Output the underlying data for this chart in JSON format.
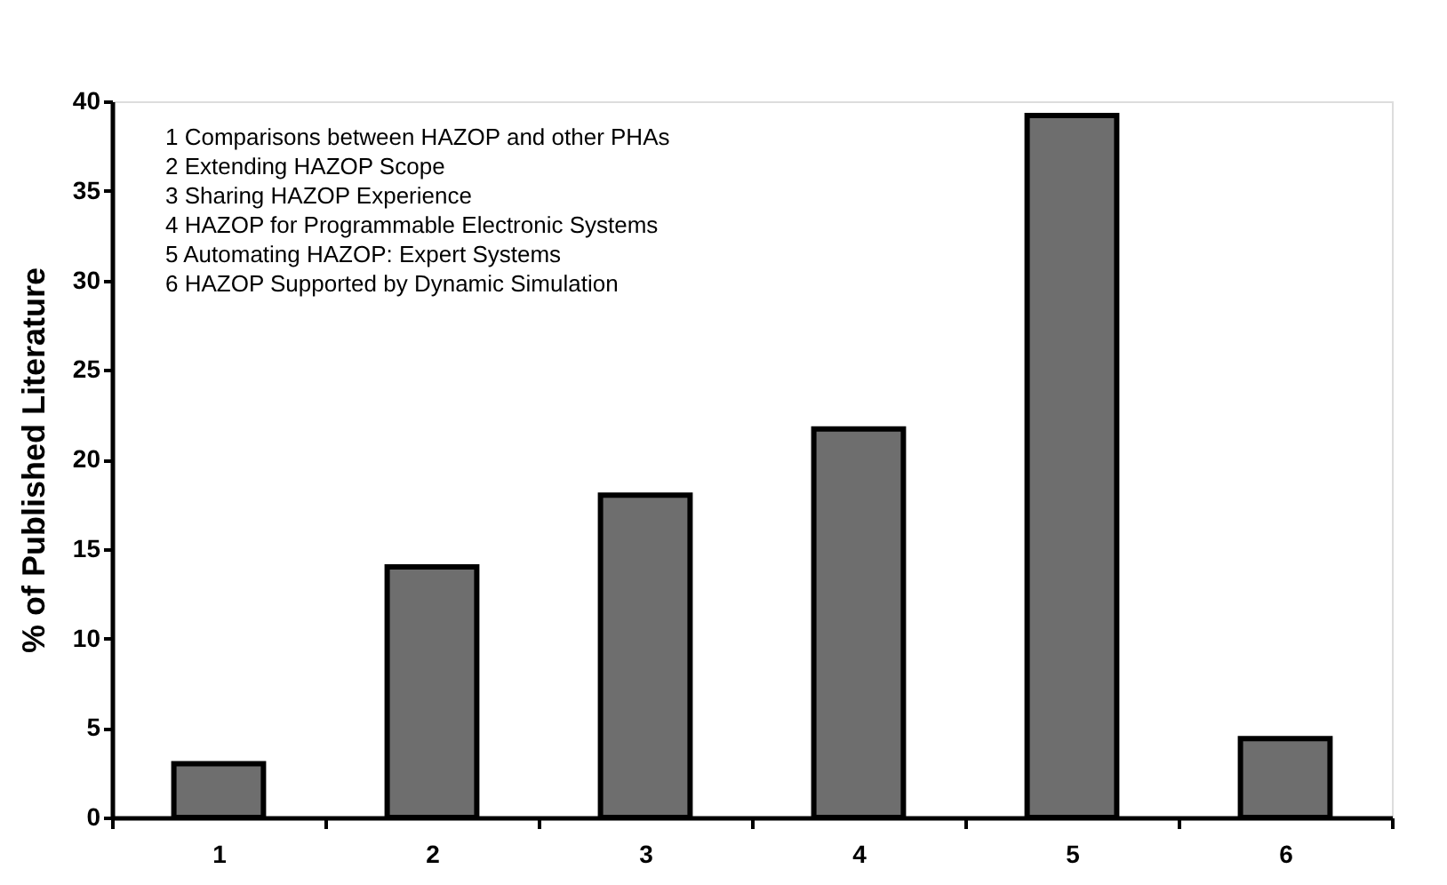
{
  "chart_data": {
    "type": "bar",
    "ylabel": "% of Published Literature",
    "categories": [
      "1",
      "2",
      "3",
      "4",
      "5",
      "6"
    ],
    "values": [
      3,
      14,
      18,
      21.7,
      39.2,
      4.4
    ],
    "color": "#6e6e6e",
    "ylim": [
      0,
      40
    ],
    "yticks": [
      0,
      5,
      10,
      15,
      20,
      25,
      30,
      35,
      40
    ],
    "grid": false,
    "annotations": [
      "1 Comparisons between HAZOP and other PHAs",
      "2 Extending HAZOP Scope",
      "3 Sharing HAZOP Experience",
      "4 HAZOP for Programmable Electronic Systems",
      "5 Automating HAZOP: Expert Systems",
      "6 HAZOP Supported by Dynamic Simulation"
    ]
  }
}
